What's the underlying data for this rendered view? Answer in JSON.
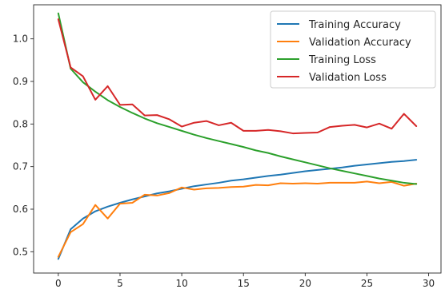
{
  "chart_data": {
    "type": "line",
    "title": "",
    "xlabel": "",
    "ylabel": "",
    "xlim": [
      -2,
      31
    ],
    "ylim": [
      0.45,
      1.08
    ],
    "xticks": [
      0,
      5,
      10,
      15,
      20,
      25,
      30
    ],
    "yticks": [
      0.5,
      0.6,
      0.7,
      0.8,
      0.9,
      1.0
    ],
    "grid": false,
    "legend_position": "top-right",
    "x": [
      0,
      1,
      2,
      3,
      4,
      5,
      6,
      7,
      8,
      9,
      10,
      11,
      12,
      13,
      14,
      15,
      16,
      17,
      18,
      19,
      20,
      21,
      22,
      23,
      24,
      25,
      26,
      27,
      28,
      29
    ],
    "series": [
      {
        "name": "Training Accuracy",
        "color": "#1f77b4",
        "values": [
          0.483,
          0.553,
          0.578,
          0.595,
          0.606,
          0.615,
          0.623,
          0.63,
          0.637,
          0.642,
          0.648,
          0.654,
          0.658,
          0.662,
          0.667,
          0.67,
          0.674,
          0.678,
          0.681,
          0.685,
          0.689,
          0.692,
          0.695,
          0.698,
          0.702,
          0.705,
          0.708,
          0.711,
          0.713,
          0.716
        ]
      },
      {
        "name": "Validation Accuracy",
        "color": "#ff7f0e",
        "values": [
          0.488,
          0.546,
          0.565,
          0.61,
          0.578,
          0.613,
          0.615,
          0.634,
          0.632,
          0.638,
          0.651,
          0.646,
          0.649,
          0.65,
          0.652,
          0.653,
          0.657,
          0.656,
          0.661,
          0.66,
          0.661,
          0.66,
          0.662,
          0.662,
          0.662,
          0.665,
          0.661,
          0.664,
          0.655,
          0.66
        ]
      },
      {
        "name": "Training Loss",
        "color": "#2ca02c",
        "values": [
          1.06,
          0.93,
          0.898,
          0.876,
          0.856,
          0.84,
          0.826,
          0.813,
          0.802,
          0.793,
          0.784,
          0.775,
          0.767,
          0.76,
          0.753,
          0.746,
          0.738,
          0.732,
          0.724,
          0.717,
          0.71,
          0.703,
          0.696,
          0.69,
          0.684,
          0.678,
          0.672,
          0.667,
          0.662,
          0.659
        ]
      },
      {
        "name": "Validation Loss",
        "color": "#d62728",
        "values": [
          1.046,
          0.933,
          0.912,
          0.857,
          0.889,
          0.845,
          0.846,
          0.82,
          0.821,
          0.811,
          0.794,
          0.803,
          0.807,
          0.797,
          0.803,
          0.784,
          0.784,
          0.786,
          0.783,
          0.778,
          0.779,
          0.78,
          0.793,
          0.796,
          0.798,
          0.792,
          0.801,
          0.789,
          0.824,
          0.795
        ]
      }
    ]
  }
}
